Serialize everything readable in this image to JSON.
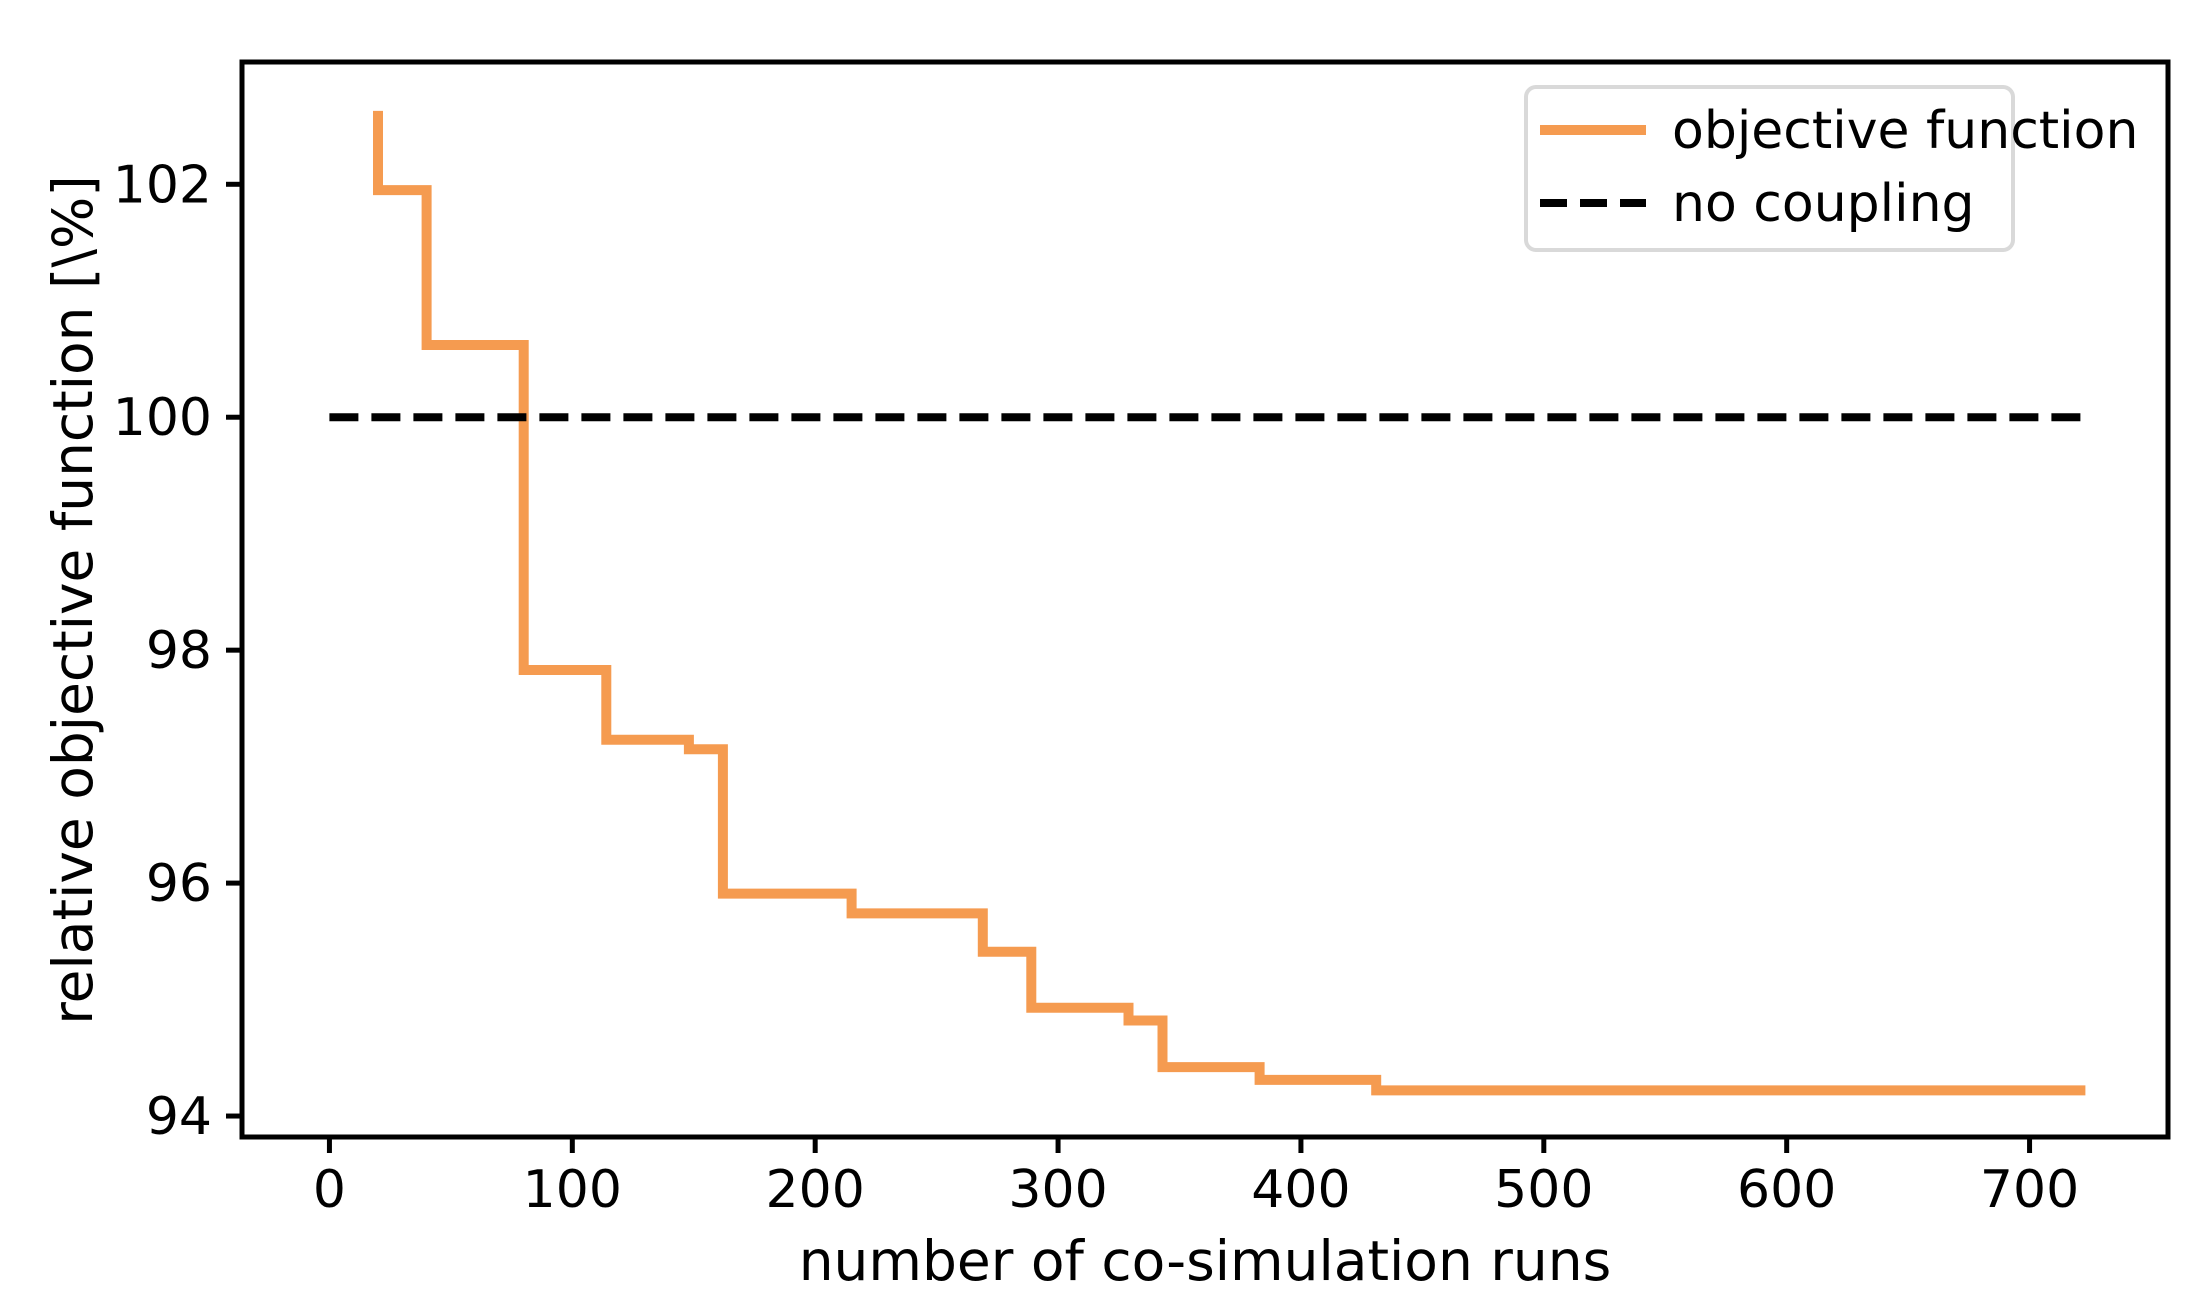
{
  "chart_data": {
    "type": "line",
    "title": "",
    "xlabel": "number of co-simulation runs",
    "ylabel": "relative objective function [\\%]",
    "xlim": [
      -36,
      757
    ],
    "ylim": [
      93.82,
      103.05
    ],
    "x_ticks": [
      0,
      100,
      200,
      300,
      400,
      500,
      600,
      700
    ],
    "y_ticks": [
      94,
      96,
      98,
      100,
      102
    ],
    "grid": false,
    "legend_position": "upper right",
    "series": [
      {
        "name": "objective function",
        "color": "#f59b50",
        "style": "solid",
        "step": true,
        "points": [
          [
            20,
            102.63
          ],
          [
            20,
            101.95
          ],
          [
            40,
            101.95
          ],
          [
            40,
            100.62
          ],
          [
            80,
            100.62
          ],
          [
            80,
            97.83
          ],
          [
            114,
            97.83
          ],
          [
            114,
            97.23
          ],
          [
            148,
            97.23
          ],
          [
            148,
            97.15
          ],
          [
            162,
            97.15
          ],
          [
            162,
            95.91
          ],
          [
            215,
            95.91
          ],
          [
            215,
            95.74
          ],
          [
            269,
            95.74
          ],
          [
            269,
            95.41
          ],
          [
            289,
            95.41
          ],
          [
            289,
            94.93
          ],
          [
            329,
            94.93
          ],
          [
            329,
            94.82
          ],
          [
            343,
            94.82
          ],
          [
            343,
            94.42
          ],
          [
            383,
            94.42
          ],
          [
            383,
            94.31
          ],
          [
            431,
            94.31
          ],
          [
            431,
            94.22
          ],
          [
            723,
            94.22
          ]
        ]
      },
      {
        "name": "no coupling",
        "color": "#000000",
        "style": "dashed",
        "step": false,
        "points": [
          [
            0,
            100
          ],
          [
            722,
            100
          ]
        ]
      }
    ]
  }
}
